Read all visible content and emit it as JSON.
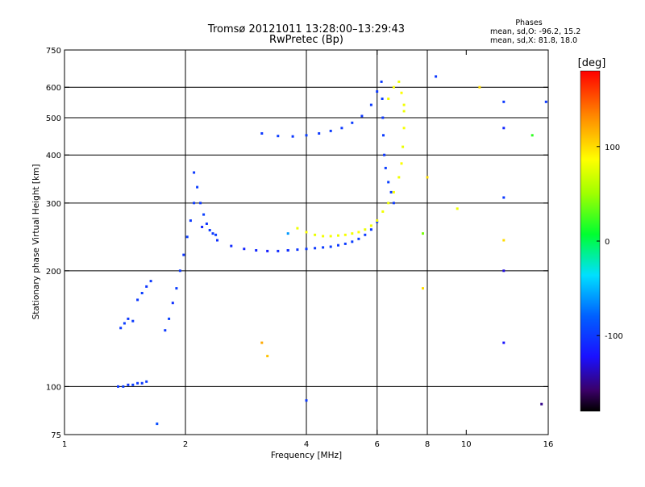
{
  "header": {
    "title_line1": "Tromsø 20121011 13:28:00–13:29:43",
    "title_line2": "RwPretec (Bp)",
    "phases_title": "Phases",
    "phases_o": "mean, sd,O: -96.2, 15.2",
    "phases_x": "mean, sd,X:  81.8, 18.0"
  },
  "chart_data": {
    "type": "scatter",
    "xlabel": "Frequency [MHz]",
    "ylabel": "Stationary phase Virtual Height [km]",
    "xscale": "log",
    "yscale": "log",
    "xlim": [
      1,
      16
    ],
    "ylim": [
      75,
      750
    ],
    "x_ticks": [
      1,
      2,
      4,
      6,
      8,
      10,
      16
    ],
    "y_ticks": [
      75,
      100,
      200,
      300,
      400,
      500,
      600,
      750
    ],
    "grid_x": [
      2,
      4,
      6,
      8
    ],
    "grid_y": [
      100,
      200,
      300,
      400,
      500,
      600
    ],
    "colorbar": {
      "label": "[deg]",
      "range": [
        -180,
        180
      ],
      "ticks": [
        100,
        0,
        -100
      ]
    },
    "series": [
      {
        "x": [
          1.36,
          1.4,
          1.44,
          1.48,
          1.52,
          1.56,
          1.6
        ],
        "y": [
          100,
          100,
          101,
          101,
          102,
          102,
          103
        ],
        "phase": [
          -100,
          -98,
          -102,
          -97,
          -100,
          -101,
          -99
        ]
      },
      {
        "x": [
          1.38,
          1.41,
          1.44,
          1.48
        ],
        "y": [
          142,
          146,
          150,
          148
        ],
        "phase": [
          -100,
          -98,
          -101,
          -99
        ]
      },
      {
        "x": [
          1.52,
          1.56,
          1.6,
          1.64
        ],
        "y": [
          168,
          175,
          182,
          188
        ],
        "phase": [
          -100,
          -97,
          -102,
          -100
        ]
      },
      {
        "x": [
          1.78,
          1.82,
          1.86,
          1.9,
          1.94,
          1.98,
          2.02,
          2.06,
          2.1
        ],
        "y": [
          140,
          150,
          165,
          180,
          200,
          220,
          245,
          270,
          300
        ],
        "phase": [
          -100,
          -95,
          -105,
          -98,
          -100,
          -102,
          -97,
          -100,
          -99
        ]
      },
      {
        "x": [
          2.1,
          2.14,
          2.18,
          2.22,
          2.26,
          2.3,
          2.34,
          2.38
        ],
        "y": [
          360,
          330,
          300,
          280,
          265,
          255,
          250,
          248
        ],
        "phase": [
          -100,
          -98,
          -101,
          -97,
          -103,
          -99,
          -100,
          -98
        ]
      },
      {
        "x": [
          2.2,
          2.4,
          2.6,
          2.8,
          3.0,
          3.2,
          3.4,
          3.6
        ],
        "y": [
          260,
          240,
          232,
          228,
          226,
          225,
          225,
          226
        ],
        "phase": [
          -110,
          -105,
          -108,
          -112,
          -110,
          -115,
          -108,
          -112
        ]
      },
      {
        "x": [
          3.6,
          3.8,
          4.0,
          4.2,
          4.4,
          4.6,
          4.8,
          5.0,
          5.2,
          5.4,
          5.6,
          5.8,
          6.0
        ],
        "y": [
          226,
          227,
          228,
          229,
          230,
          231,
          233,
          235,
          238,
          242,
          248,
          256,
          268
        ],
        "phase": [
          -105,
          -102,
          -100,
          -101,
          -99,
          -98,
          -100,
          -99,
          -98,
          -97,
          -99,
          -100,
          -98
        ]
      },
      {
        "x": [
          3.1,
          3.4,
          3.7,
          4.0,
          4.3,
          4.6,
          4.9,
          5.2,
          5.5,
          5.8,
          6.0
        ],
        "y": [
          455,
          448,
          447,
          450,
          455,
          462,
          470,
          485,
          505,
          540,
          585
        ],
        "phase": [
          -100,
          -98,
          -101,
          -97,
          -100,
          -99,
          -100,
          -98,
          -101,
          -99,
          -100
        ]
      },
      {
        "x": [
          6.15,
          6.18,
          6.2,
          6.22,
          6.25,
          6.3,
          6.4,
          6.5,
          6.6
        ],
        "y": [
          620,
          560,
          500,
          450,
          400,
          370,
          340,
          320,
          300
        ],
        "phase": [
          -100,
          -98,
          -100,
          -99,
          -101,
          -98,
          -97,
          -100,
          -99
        ]
      },
      {
        "x": [
          3.8,
          4.0,
          4.2,
          4.4,
          4.6,
          4.8,
          5.0,
          5.2,
          5.4,
          5.6,
          5.8,
          6.0
        ],
        "y": [
          258,
          252,
          248,
          246,
          246,
          247,
          248,
          250,
          252,
          256,
          262,
          270
        ],
        "phase": [
          80,
          85,
          78,
          82,
          84,
          80,
          83,
          81,
          86,
          79,
          82,
          84
        ]
      },
      {
        "x": [
          6.2,
          6.4,
          6.6,
          6.8,
          6.9,
          6.95,
          7.0,
          7.0
        ],
        "y": [
          285,
          300,
          320,
          350,
          380,
          420,
          470,
          520
        ],
        "phase": [
          82,
          80,
          84,
          81,
          85,
          79,
          83,
          80
        ]
      },
      {
        "x": [
          6.4,
          6.6,
          6.8,
          6.9,
          7.0
        ],
        "y": [
          560,
          600,
          620,
          580,
          540
        ],
        "phase": [
          82,
          84,
          80,
          86,
          81
        ]
      },
      {
        "x": [
          8.4,
          12.4,
          12.4,
          12.4,
          12.4,
          12.4,
          12.4,
          14.6,
          15.4,
          15.8,
          10.8,
          9.5,
          8.0,
          7.8,
          3.1,
          3.2,
          3.6,
          1.7,
          4.0,
          7.8
        ],
        "y": [
          640,
          550,
          470,
          310,
          240,
          200,
          130,
          450,
          90,
          550,
          600,
          290,
          350,
          250,
          130,
          120,
          250,
          80,
          92,
          180
        ],
        "phase": [
          -100,
          -100,
          -110,
          -100,
          100,
          -130,
          -120,
          20,
          -150,
          -100,
          100,
          80,
          100,
          40,
          120,
          110,
          -60,
          -90,
          -100,
          100
        ]
      }
    ]
  }
}
